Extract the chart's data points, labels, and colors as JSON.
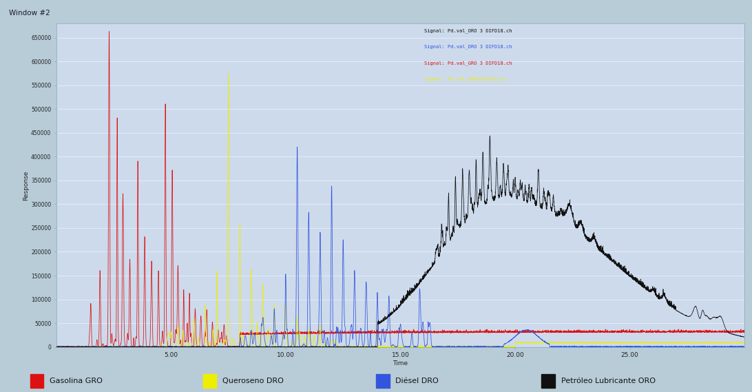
{
  "title": "Window #2",
  "xlabel": "Time",
  "ylabel": "Response",
  "bg_outer": "#b8ccd8",
  "bg_plot": "#ccdaec",
  "ylim": [
    0,
    680000
  ],
  "xlim": [
    0,
    30
  ],
  "yticks": [
    0,
    50000,
    100000,
    150000,
    200000,
    250000,
    300000,
    350000,
    400000,
    450000,
    500000,
    550000,
    600000,
    650000
  ],
  "xticks": [
    5.0,
    10.0,
    15.0,
    20.0,
    25.0
  ],
  "legend_items": [
    {
      "label": "Gasolina GRO",
      "color": "#dd1111"
    },
    {
      "label": "Queroseno DRO",
      "color": "#eeee00"
    },
    {
      "label": "Diésel DRO",
      "color": "#3355dd"
    },
    {
      "label": "Petróleo Lubricante ORO",
      "color": "#111111"
    }
  ],
  "signal_labels": [
    "Signal: Pd.val_ORO 3 DIFD18.ch",
    "Signal: Pd.val_DRO 3 DIFD18.ch",
    "Signal: Pd.val_GRO 3 DIFD18.ch",
    "Signal: Pd.val_ORO3DIFD18.ch"
  ],
  "signal_colors": [
    "#111111",
    "#3355dd",
    "#dd1111",
    "#eeee00"
  ]
}
